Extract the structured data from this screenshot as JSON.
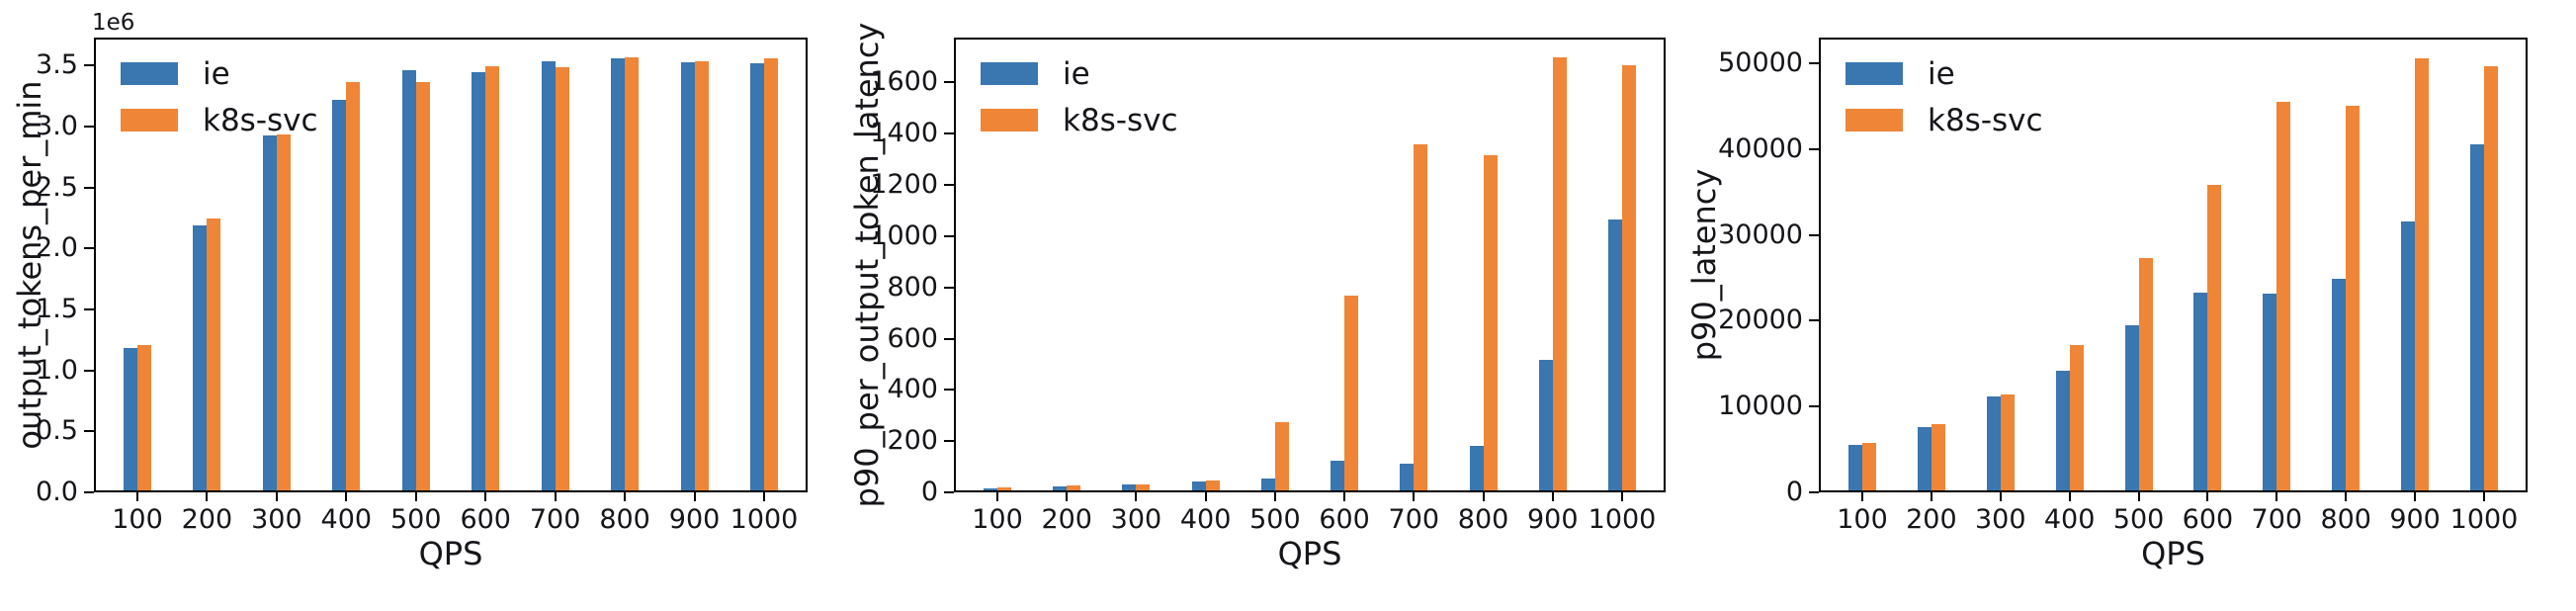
{
  "figure": {
    "background": "#ffffff",
    "text_color": "#15151a",
    "spine_color": "#000000",
    "legend_entries": [
      "ie",
      "k8s-svc"
    ],
    "series_colors": [
      "#3a76af",
      "#ef8536"
    ]
  },
  "chart_data": [
    {
      "type": "bar",
      "title": "",
      "xlabel": "QPS",
      "ylabel": "output_tokens_per_min",
      "offset_text": "1e6",
      "grid": false,
      "legend_position": "upper left",
      "categories": [
        "100",
        "200",
        "300",
        "400",
        "500",
        "600",
        "700",
        "800",
        "900",
        "1000"
      ],
      "series": [
        {
          "name": "ie",
          "color": "#3a76af",
          "values": [
            1170000,
            2170000,
            2910000,
            3200000,
            3450000,
            3430000,
            3520000,
            3540000,
            3510000,
            3500000
          ]
        },
        {
          "name": "k8s-svc",
          "color": "#ef8536",
          "values": [
            1190000,
            2230000,
            2920000,
            3350000,
            3350000,
            3480000,
            3470000,
            3550000,
            3520000,
            3540000
          ]
        }
      ],
      "ylim": [
        0,
        3730000
      ],
      "yticks": [
        {
          "value": 0,
          "label": "0.0"
        },
        {
          "value": 500000,
          "label": "0.5"
        },
        {
          "value": 1000000,
          "label": "1.0"
        },
        {
          "value": 1500000,
          "label": "1.5"
        },
        {
          "value": 2000000,
          "label": "2.0"
        },
        {
          "value": 2500000,
          "label": "2.5"
        },
        {
          "value": 3000000,
          "label": "3.0"
        },
        {
          "value": 3500000,
          "label": "3.5"
        }
      ]
    },
    {
      "type": "bar",
      "title": "",
      "xlabel": "QPS",
      "ylabel": "p90_per_output_token_latency",
      "offset_text": null,
      "grid": false,
      "legend_position": "upper left",
      "categories": [
        "100",
        "200",
        "300",
        "400",
        "500",
        "600",
        "700",
        "800",
        "900",
        "1000"
      ],
      "series": [
        {
          "name": "ie",
          "color": "#3a76af",
          "values": [
            8,
            17,
            24,
            33,
            46,
            114,
            105,
            175,
            510,
            1057
          ]
        },
        {
          "name": "k8s-svc",
          "color": "#ef8536",
          "values": [
            10,
            18,
            24,
            37,
            265,
            760,
            1350,
            1310,
            1690,
            1660
          ]
        }
      ],
      "ylim": [
        0,
        1775
      ],
      "yticks": [
        {
          "value": 0,
          "label": "0"
        },
        {
          "value": 200,
          "label": "200"
        },
        {
          "value": 400,
          "label": "400"
        },
        {
          "value": 600,
          "label": "600"
        },
        {
          "value": 800,
          "label": "800"
        },
        {
          "value": 1000,
          "label": "1000"
        },
        {
          "value": 1200,
          "label": "1200"
        },
        {
          "value": 1400,
          "label": "1400"
        },
        {
          "value": 1600,
          "label": "1600"
        }
      ]
    },
    {
      "type": "bar",
      "title": "",
      "xlabel": "QPS",
      "ylabel": "p90_latency",
      "offset_text": null,
      "grid": false,
      "legend_position": "upper left",
      "categories": [
        "100",
        "200",
        "300",
        "400",
        "500",
        "600",
        "700",
        "800",
        "900",
        "1000"
      ],
      "series": [
        {
          "name": "ie",
          "color": "#3a76af",
          "values": [
            5300,
            7400,
            10900,
            13900,
            19200,
            23100,
            22900,
            24700,
            31300,
            40300
          ]
        },
        {
          "name": "k8s-svc",
          "color": "#ef8536",
          "values": [
            5500,
            7700,
            11200,
            16900,
            27100,
            35600,
            45300,
            44800,
            50400,
            49400
          ]
        }
      ],
      "ylim": [
        0,
        53000
      ],
      "yticks": [
        {
          "value": 0,
          "label": "0"
        },
        {
          "value": 10000,
          "label": "10000"
        },
        {
          "value": 20000,
          "label": "20000"
        },
        {
          "value": 30000,
          "label": "30000"
        },
        {
          "value": 40000,
          "label": "40000"
        },
        {
          "value": 50000,
          "label": "50000"
        }
      ]
    }
  ]
}
